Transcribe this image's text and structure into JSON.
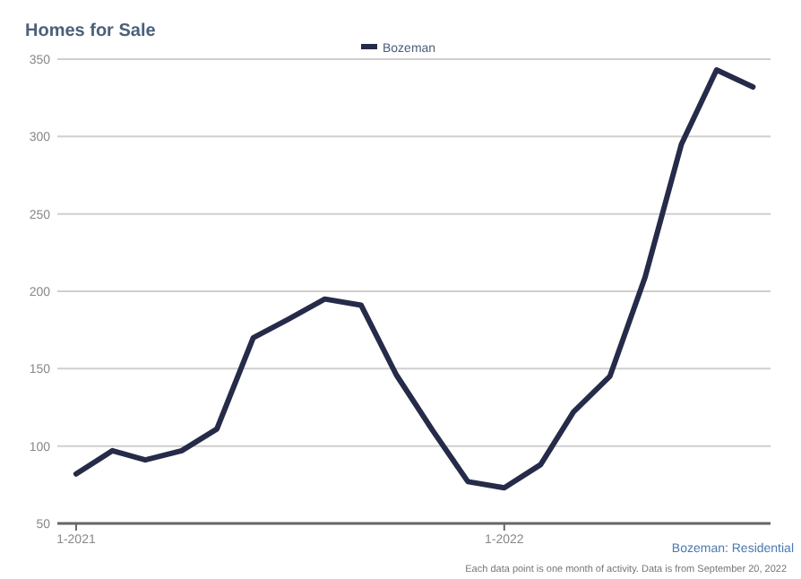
{
  "chart_data": {
    "type": "line",
    "title": "Homes for Sale",
    "x": [
      "2021-01",
      "2021-02",
      "2021-03",
      "2021-04",
      "2021-05",
      "2021-06",
      "2021-07",
      "2021-08",
      "2021-09",
      "2021-10",
      "2021-11",
      "2021-12",
      "2022-01",
      "2022-02",
      "2022-03",
      "2022-04",
      "2022-05",
      "2022-06",
      "2022-07",
      "2022-08"
    ],
    "series": [
      {
        "name": "Bozeman",
        "color": "#252b48",
        "values": [
          82,
          97,
          91,
          97,
          111,
          170,
          182,
          195,
          191,
          146,
          110,
          77,
          73,
          88,
          122,
          145,
          209,
          295,
          343,
          332
        ]
      }
    ],
    "xlim": [
      "2020-12-16",
      "2022-08-16"
    ],
    "xticks": [
      {
        "value": "2021-01",
        "label": "1-2021"
      },
      {
        "value": "2022-01",
        "label": "1-2022"
      }
    ],
    "ylim": [
      50,
      350
    ],
    "yticks": [
      50,
      100,
      150,
      200,
      250,
      300,
      350
    ],
    "grid": "y",
    "legend": "top",
    "marker": "none",
    "annotations": [
      "Bozeman: Residential",
      "Each data point is one month of activity. Data is from September 20, 2022"
    ]
  }
}
